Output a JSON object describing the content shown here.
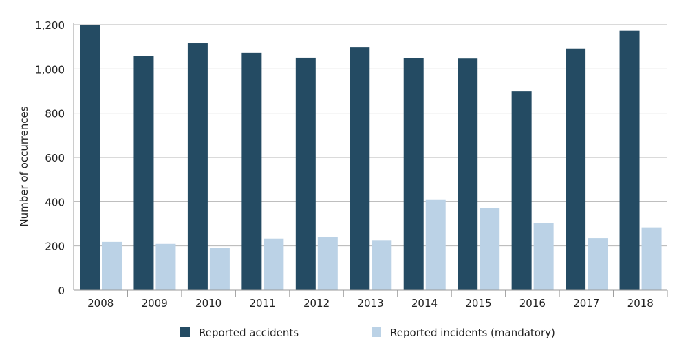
{
  "chart_data": {
    "type": "bar",
    "title": "",
    "xlabel": "",
    "ylabel": "Number of occurrences",
    "ylim": [
      0,
      1200
    ],
    "yticks": [
      "0",
      "200",
      "400",
      "600",
      "800",
      "1,000",
      "1,200"
    ],
    "ytick_values": [
      0,
      200,
      400,
      600,
      800,
      1000,
      1200
    ],
    "grid": true,
    "legend_position": "bottom-center",
    "categories": [
      "2008",
      "2009",
      "2010",
      "2011",
      "2012",
      "2013",
      "2014",
      "2015",
      "2016",
      "2017",
      "2018"
    ],
    "series": [
      {
        "name": "Reported accidents",
        "color": "#244b63",
        "values": [
          1200,
          1057,
          1116,
          1073,
          1051,
          1097,
          1049,
          1047,
          898,
          1092,
          1173
        ]
      },
      {
        "name": "Reported incidents (mandatory)",
        "color": "#bbd2e6",
        "values": [
          218,
          209,
          190,
          234,
          240,
          226,
          408,
          373,
          304,
          236,
          284
        ]
      }
    ]
  }
}
